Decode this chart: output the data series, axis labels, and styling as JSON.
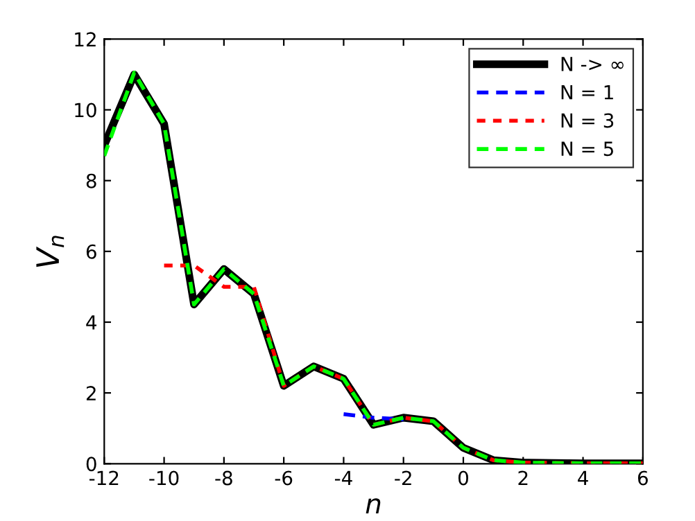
{
  "chart_data": {
    "type": "line",
    "xlabel": "n",
    "ylabel": "V$_{n}$",
    "xlim": [
      -12,
      6
    ],
    "ylim": [
      0,
      12
    ],
    "xticks": [
      -12,
      -10,
      -8,
      -6,
      -4,
      -2,
      0,
      2,
      4,
      6
    ],
    "yticks": [
      0,
      2,
      4,
      6,
      8,
      10,
      12
    ],
    "grid": false,
    "legend": "top right",
    "series": [
      {
        "name": "N -> ∞",
        "color": "#000000",
        "line_style": "solid",
        "x": [
          -12,
          -11,
          -10,
          -9,
          -8,
          -7,
          -6,
          -5,
          -4,
          -3,
          -2,
          -1,
          0,
          1,
          2,
          3,
          4,
          5,
          6
        ],
        "values": [
          9.0,
          11.0,
          9.6,
          4.5,
          5.5,
          4.8,
          2.2,
          2.75,
          2.4,
          1.1,
          1.3,
          1.2,
          0.45,
          0.1,
          0.03,
          0.02,
          0.01,
          0.01,
          0.01
        ]
      },
      {
        "name": "N = 1",
        "color": "#0000ff",
        "line_style": "dashed",
        "x": [
          -4,
          -3,
          -2
        ],
        "values": [
          1.4,
          1.3,
          1.25
        ]
      },
      {
        "name": "N = 3",
        "color": "#ff0000",
        "line_style": "dashed",
        "x": [
          -10,
          -9,
          -8,
          -7,
          -6,
          -5,
          -4,
          -3,
          -2,
          -1,
          0,
          1,
          2,
          3,
          4,
          5,
          6
        ],
        "values": [
          5.6,
          5.6,
          5.0,
          5.0,
          2.2,
          2.75,
          2.4,
          1.1,
          1.3,
          1.2,
          0.45,
          0.1,
          0.03,
          0.02,
          0.01,
          0.01,
          0.01
        ]
      },
      {
        "name": "N = 5",
        "color": "#00ff00",
        "line_style": "dashed",
        "x": [
          -12,
          -11,
          -10,
          -9,
          -8,
          -7,
          -6,
          -5,
          -4,
          -3,
          -2,
          -1,
          0,
          1,
          2,
          3,
          4,
          5,
          6
        ],
        "values": [
          8.7,
          11.05,
          9.6,
          4.5,
          5.5,
          4.8,
          2.2,
          2.75,
          2.4,
          1.1,
          1.3,
          1.2,
          0.45,
          0.1,
          0.03,
          0.02,
          0.01,
          0.01,
          0.01
        ]
      }
    ]
  }
}
